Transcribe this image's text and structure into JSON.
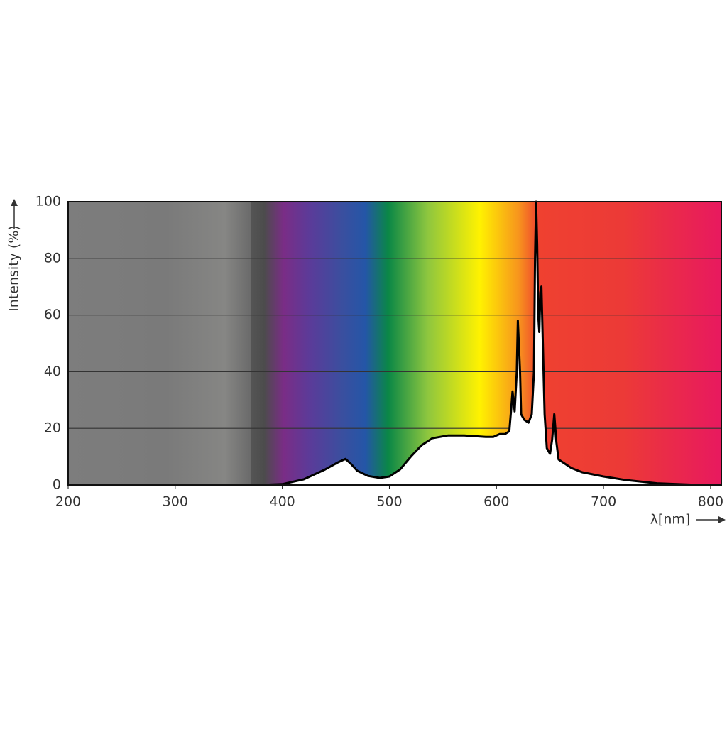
{
  "chart_data": {
    "type": "area",
    "ylabel": "Intensity (%)",
    "xlabel": "λ[nm]",
    "x": [
      378,
      400,
      420,
      440,
      452,
      459,
      464,
      470,
      480,
      491,
      500,
      510,
      520,
      530,
      540,
      555,
      570,
      590,
      597,
      603,
      608,
      612,
      614,
      615,
      617,
      619,
      620,
      622,
      623,
      626,
      630,
      633,
      635,
      636,
      637,
      638,
      639,
      640,
      641,
      642,
      643,
      645,
      647,
      650,
      652,
      654,
      656,
      658,
      670,
      680,
      700,
      720,
      750,
      790
    ],
    "values": [
      0,
      0.3,
      2,
      5.5,
      8,
      9.2,
      7.5,
      5,
      3.2,
      2.5,
      3,
      5.5,
      10,
      14,
      16.5,
      17.5,
      17.5,
      17,
      17,
      18,
      18,
      19,
      28,
      33,
      26,
      40,
      58,
      40,
      25,
      23,
      22,
      25,
      40,
      80,
      100,
      85,
      60,
      54,
      68,
      70,
      55,
      25,
      13,
      11,
      16,
      25,
      15,
      9,
      6,
      4.5,
      3,
      1.8,
      0.6,
      0
    ],
    "color": "#ffffff",
    "xlim": [
      200,
      810
    ],
    "xticks": [
      200,
      300,
      400,
      500,
      600,
      700,
      800
    ],
    "ylim": [
      0,
      100
    ],
    "yticks": [
      0,
      20,
      40,
      60,
      80,
      100
    ],
    "grid": true
  }
}
